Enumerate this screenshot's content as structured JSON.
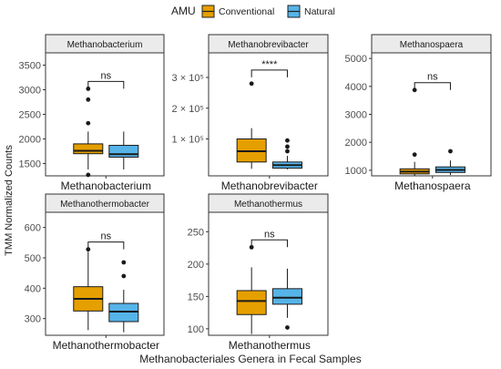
{
  "legend": {
    "title": "AMU",
    "items": [
      {
        "label": "Conventional",
        "color": "#E69F00"
      },
      {
        "label": "Natural",
        "color": "#56B4E9"
      }
    ]
  },
  "axis_labels": {
    "y": "TMM Normalized Counts",
    "x": "Methanobacteriales Genera in Fecal Samples"
  },
  "chart_data": [
    {
      "type": "box",
      "facet": "Methanobacterium",
      "category_label": "Methanobacterium",
      "ylim": [
        1250,
        3750
      ],
      "yticks": [
        1500,
        2000,
        2500,
        3000,
        3500
      ],
      "yticklabels": [
        "1500",
        "2000",
        "2500",
        "3000",
        "3500"
      ],
      "significance": "ns",
      "series": [
        {
          "name": "Conventional",
          "color": "#E69F00",
          "q1": 1700,
          "median": 1760,
          "q3": 1900,
          "whisker_low": 1380,
          "whisker_high": 2150,
          "outliers": [
            3020,
            2800,
            2320,
            1270
          ]
        },
        {
          "name": "Natural",
          "color": "#56B4E9",
          "q1": 1630,
          "median": 1690,
          "q3": 1870,
          "whisker_low": 1380,
          "whisker_high": 2150,
          "outliers": []
        }
      ]
    },
    {
      "type": "box",
      "facet": "Methanobrevibacter",
      "category_label": "Methanobrevibacter",
      "ylim": [
        -20000,
        380000
      ],
      "yticks": [
        100000,
        200000,
        300000
      ],
      "yticklabels": [
        "1 × 10⁵",
        "2 × 10⁵",
        "3 × 10⁵"
      ],
      "significance": "****",
      "series": [
        {
          "name": "Conventional",
          "color": "#E69F00",
          "q1": 25000,
          "median": 60000,
          "q3": 100000,
          "whisker_low": 3000,
          "whisker_high": 135000,
          "outliers": [
            280000
          ]
        },
        {
          "name": "Natural",
          "color": "#56B4E9",
          "q1": 5000,
          "median": 15000,
          "q3": 25000,
          "whisker_low": 1000,
          "whisker_high": 45000,
          "outliers": [
            95000,
            75000,
            60000
          ]
        }
      ]
    },
    {
      "type": "box",
      "facet": "Methanospaera",
      "category_label": "Methanospaera",
      "ylim": [
        800,
        5200
      ],
      "yticks": [
        1000,
        2000,
        3000,
        4000,
        5000
      ],
      "yticklabels": [
        "1000",
        "2000",
        "3000",
        "4000",
        "5000"
      ],
      "significance": "ns",
      "series": [
        {
          "name": "Conventional",
          "color": "#E69F00",
          "q1": 870,
          "median": 950,
          "q3": 1050,
          "whisker_low": 800,
          "whisker_high": 1300,
          "outliers": [
            3870,
            1560
          ]
        },
        {
          "name": "Natural",
          "color": "#56B4E9",
          "q1": 920,
          "median": 1010,
          "q3": 1120,
          "whisker_low": 830,
          "whisker_high": 1350,
          "outliers": [
            1680
          ]
        }
      ]
    },
    {
      "type": "box",
      "facet": "Methanothermobacter",
      "category_label": "Methanothermobacter",
      "ylim": [
        245,
        650
      ],
      "yticks": [
        300,
        400,
        500,
        600
      ],
      "yticklabels": [
        "300",
        "400",
        "500",
        "600"
      ],
      "significance": "ns",
      "series": [
        {
          "name": "Conventional",
          "color": "#E69F00",
          "q1": 325,
          "median": 365,
          "q3": 405,
          "whisker_low": 262,
          "whisker_high": 520,
          "outliers": [
            528
          ]
        },
        {
          "name": "Natural",
          "color": "#56B4E9",
          "q1": 290,
          "median": 323,
          "q3": 350,
          "whisker_low": 255,
          "whisker_high": 395,
          "outliers": [
            485,
            440
          ]
        }
      ]
    },
    {
      "type": "box",
      "facet": "Methanothermus",
      "category_label": "Methanothermus",
      "ylim": [
        90,
        280
      ],
      "yticks": [
        100,
        150,
        200,
        250
      ],
      "yticklabels": [
        "100",
        "150",
        "200",
        "250"
      ],
      "significance": "ns",
      "series": [
        {
          "name": "Conventional",
          "color": "#E69F00",
          "q1": 122,
          "median": 143,
          "q3": 159,
          "whisker_low": 92,
          "whisker_high": 195,
          "outliers": [
            226
          ]
        },
        {
          "name": "Natural",
          "color": "#56B4E9",
          "q1": 138,
          "median": 148,
          "q3": 162,
          "whisker_low": 117,
          "whisker_high": 193,
          "outliers": [
            102
          ]
        }
      ]
    }
  ]
}
